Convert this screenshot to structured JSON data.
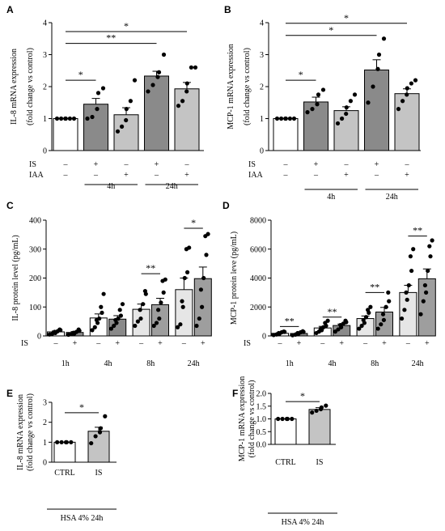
{
  "colors": {
    "white": "#ffffff",
    "dark_gray": "#8a8a8a",
    "light_gray": "#c4c4c4",
    "very_light_gray": "#e6e6e6",
    "mid_gray": "#9e9e9e",
    "black": "#000000"
  },
  "chart_data": [
    {
      "panel": "A",
      "type": "bar",
      "ylabel": [
        "IL-8 mRNA expression",
        "(fold change vs control)"
      ],
      "ylim": [
        0,
        4
      ],
      "yticks": [
        0,
        1,
        2,
        3,
        4
      ],
      "grid": false,
      "conditions": [
        {
          "label": "IS",
          "values": [
            "–",
            "+",
            "–",
            "+",
            "–"
          ]
        },
        {
          "label": "IAA",
          "values": [
            "–",
            "–",
            "+",
            "–",
            "+"
          ]
        }
      ],
      "groups": [
        {
          "label": "4h",
          "bars": [
            1,
            2
          ]
        },
        {
          "label": "24h",
          "bars": [
            3,
            4
          ]
        }
      ],
      "bars": [
        {
          "mean": 1.0,
          "err": 0.0,
          "color": "white",
          "points": [
            1,
            1,
            1,
            1,
            1,
            1
          ]
        },
        {
          "mean": 1.45,
          "err": 0.18,
          "color": "dark_gray",
          "points": [
            1.0,
            1.05,
            1.3,
            1.8,
            1.95
          ]
        },
        {
          "mean": 1.12,
          "err": 0.22,
          "color": "light_gray",
          "points": [
            0.6,
            0.75,
            0.95,
            1.3,
            1.55,
            2.2
          ]
        },
        {
          "mean": 2.33,
          "err": 0.15,
          "color": "dark_gray",
          "points": [
            1.85,
            2.05,
            2.3,
            2.45,
            3.0
          ]
        },
        {
          "mean": 1.93,
          "err": 0.2,
          "color": "light_gray",
          "points": [
            1.4,
            1.55,
            1.85,
            2.1,
            2.6,
            2.6
          ]
        }
      ],
      "sig": [
        {
          "from": 0,
          "to": 1,
          "label": "*",
          "y": 2.2
        },
        {
          "from": 0,
          "to": 3,
          "label": "**",
          "y": 3.35
        },
        {
          "from": 0,
          "to": 4,
          "label": "*",
          "y": 3.72
        }
      ]
    },
    {
      "panel": "B",
      "type": "bar",
      "ylabel": [
        "MCP-1 mRNA expression",
        "(fold change vs control)"
      ],
      "ylim": [
        0,
        4
      ],
      "yticks": [
        0,
        1,
        2,
        3,
        4
      ],
      "grid": false,
      "conditions": [
        {
          "label": "IS",
          "values": [
            "–",
            "+",
            "–",
            "+",
            "–"
          ]
        },
        {
          "label": "IAA",
          "values": [
            "–",
            "–",
            "+",
            "–",
            "+"
          ]
        }
      ],
      "groups": [
        {
          "label": "4h",
          "bars": [
            1,
            2
          ]
        },
        {
          "label": "24h",
          "bars": [
            3,
            4
          ]
        }
      ],
      "bars": [
        {
          "mean": 1.0,
          "err": 0.0,
          "color": "white",
          "points": [
            1,
            1,
            1,
            1,
            1,
            1
          ]
        },
        {
          "mean": 1.52,
          "err": 0.15,
          "color": "dark_gray",
          "points": [
            1.2,
            1.3,
            1.45,
            1.75,
            1.9
          ]
        },
        {
          "mean": 1.25,
          "err": 0.12,
          "color": "light_gray",
          "points": [
            0.85,
            1.0,
            1.15,
            1.35,
            1.55,
            1.75
          ]
        },
        {
          "mean": 2.52,
          "err": 0.32,
          "color": "dark_gray",
          "points": [
            1.5,
            2.0,
            2.55,
            3.0,
            3.5
          ]
        },
        {
          "mean": 1.78,
          "err": 0.15,
          "color": "light_gray",
          "points": [
            1.3,
            1.55,
            1.75,
            1.95,
            2.1,
            2.2
          ]
        }
      ],
      "sig": [
        {
          "from": 0,
          "to": 1,
          "label": "*",
          "y": 2.2
        },
        {
          "from": 0,
          "to": 3,
          "label": "*",
          "y": 3.6
        },
        {
          "from": 0,
          "to": 4,
          "label": "*",
          "y": 3.98
        }
      ]
    },
    {
      "panel": "C",
      "type": "bar",
      "ylabel": [
        "IL-8 protein level (pg/mL)"
      ],
      "ylim": [
        0,
        400
      ],
      "yticks": [
        0,
        100,
        200,
        300,
        400
      ],
      "grid": false,
      "conditions": [
        {
          "label": "IS",
          "values": [
            "–",
            "+",
            "–",
            "+",
            "–",
            "+",
            "–",
            "+"
          ]
        }
      ],
      "groups": [
        {
          "label": "1h",
          "bars": [
            0,
            1
          ]
        },
        {
          "label": "4h",
          "bars": [
            2,
            3
          ]
        },
        {
          "label": "8h",
          "bars": [
            4,
            5
          ]
        },
        {
          "label": "24h",
          "bars": [
            6,
            7
          ]
        }
      ],
      "bars": [
        {
          "mean": 14,
          "err": 3,
          "color": "white",
          "points": [
            5,
            8,
            10,
            14,
            16,
            20,
            22
          ]
        },
        {
          "mean": 12,
          "err": 3,
          "color": "dark_gray",
          "points": [
            4,
            6,
            8,
            11,
            14,
            18,
            22
          ]
        },
        {
          "mean": 62,
          "err": 14,
          "color": "white",
          "points": [
            20,
            30,
            45,
            55,
            60,
            80,
            100,
            145
          ]
        },
        {
          "mean": 58,
          "err": 12,
          "color": "dark_gray",
          "points": [
            25,
            35,
            45,
            55,
            60,
            70,
            90,
            110
          ]
        },
        {
          "mean": 92,
          "err": 18,
          "color": "very_light_gray",
          "points": [
            35,
            50,
            60,
            90,
            110,
            145,
            155
          ]
        },
        {
          "mean": 108,
          "err": 22,
          "color": "mid_gray",
          "points": [
            35,
            45,
            60,
            90,
            115,
            150,
            190,
            195
          ]
        },
        {
          "mean": 160,
          "err": 40,
          "color": "very_light_gray",
          "points": [
            30,
            40,
            100,
            120,
            200,
            220,
            300,
            305
          ]
        },
        {
          "mean": 198,
          "err": 40,
          "color": "mid_gray",
          "points": [
            35,
            60,
            100,
            160,
            200,
            280,
            345,
            352
          ]
        }
      ],
      "sig": [
        {
          "from": 4,
          "to": 5,
          "label": "**",
          "y": 215
        },
        {
          "from": 6,
          "to": 7,
          "label": "*",
          "y": 372
        }
      ]
    },
    {
      "panel": "D",
      "type": "bar",
      "ylabel": [
        "MCP-1 protein leve (pg/mL)"
      ],
      "ylim": [
        0,
        8000
      ],
      "yticks": [
        0,
        2000,
        4000,
        6000,
        8000
      ],
      "grid": false,
      "conditions": [
        {
          "label": "IS",
          "values": [
            "–",
            "+",
            "–",
            "+",
            "–",
            "+",
            "–",
            "+"
          ]
        }
      ],
      "groups": [
        {
          "label": "1h",
          "bars": [
            0,
            1
          ]
        },
        {
          "label": "4h",
          "bars": [
            2,
            3
          ]
        },
        {
          "label": "8h",
          "bars": [
            4,
            5
          ]
        },
        {
          "label": "24h",
          "bars": [
            6,
            7
          ]
        }
      ],
      "bars": [
        {
          "mean": 180,
          "err": 40,
          "color": "white",
          "points": [
            60,
            100,
            150,
            200,
            250,
            280,
            300
          ]
        },
        {
          "mean": 170,
          "err": 40,
          "color": "dark_gray",
          "points": [
            50,
            90,
            150,
            200,
            250,
            280,
            320
          ]
        },
        {
          "mean": 550,
          "err": 110,
          "color": "white",
          "points": [
            200,
            300,
            400,
            500,
            600,
            700,
            900,
            1050
          ]
        },
        {
          "mean": 720,
          "err": 100,
          "color": "dark_gray",
          "points": [
            300,
            450,
            600,
            750,
            850,
            950,
            1050
          ]
        },
        {
          "mean": 1200,
          "err": 180,
          "color": "very_light_gray",
          "points": [
            500,
            700,
            900,
            1100,
            1300,
            1600,
            1800,
            2000
          ]
        },
        {
          "mean": 1650,
          "err": 320,
          "color": "mid_gray",
          "points": [
            500,
            800,
            1100,
            1500,
            2000,
            2400,
            3000
          ]
        },
        {
          "mean": 3000,
          "err": 500,
          "color": "very_light_gray",
          "points": [
            1200,
            1800,
            2500,
            3000,
            3500,
            4500,
            5500,
            6000
          ]
        },
        {
          "mean": 3950,
          "err": 680,
          "color": "mid_gray",
          "points": [
            1500,
            2400,
            3000,
            3500,
            4500,
            5500,
            6200,
            6600
          ]
        }
      ],
      "sig": [
        {
          "from": 0,
          "to": 1,
          "label": "**",
          "y": 650
        },
        {
          "from": 2,
          "to": 3,
          "label": "**",
          "y": 1300
        },
        {
          "from": 4,
          "to": 5,
          "label": "**",
          "y": 3000
        },
        {
          "from": 6,
          "to": 7,
          "label": "**",
          "y": 6900
        }
      ]
    },
    {
      "panel": "E",
      "type": "bar",
      "ylabel": [
        "IL-8 mRNA expression",
        "(fold change vs control)"
      ],
      "ylim": [
        0,
        3
      ],
      "yticks": [
        0,
        1,
        2,
        3
      ],
      "grid": false,
      "categories": [
        "CTRL",
        "IS"
      ],
      "footer": "HSA 4% 24h",
      "bars": [
        {
          "mean": 1.0,
          "err": 0.0,
          "color": "white",
          "points": [
            1,
            1,
            1,
            1,
            1
          ]
        },
        {
          "mean": 1.55,
          "err": 0.2,
          "color": "light_gray",
          "points": [
            0.95,
            1.3,
            1.5,
            1.7,
            2.3
          ]
        }
      ],
      "sig": [
        {
          "from": 0,
          "to": 1,
          "label": "*",
          "y": 2.48
        }
      ]
    },
    {
      "panel": "F",
      "type": "bar",
      "ylabel": [
        "MCP-1 mRNA expression",
        "(fold change vs control)"
      ],
      "ylim": [
        0,
        2.0
      ],
      "yticks": [
        0.0,
        0.5,
        1.0,
        1.5,
        2.0
      ],
      "ytick_decimals": 1,
      "grid": false,
      "categories": [
        "CTRL",
        "IS"
      ],
      "footer": "HSA 4% 24h",
      "bars": [
        {
          "mean": 1.0,
          "err": 0.0,
          "color": "white",
          "points": [
            1,
            1,
            1,
            1,
            1
          ]
        },
        {
          "mean": 1.37,
          "err": 0.07,
          "color": "light_gray",
          "points": [
            1.25,
            1.32,
            1.38,
            1.45,
            1.52
          ]
        }
      ],
      "sig": [
        {
          "from": 0,
          "to": 1,
          "label": "*",
          "y": 1.68
        }
      ]
    }
  ]
}
